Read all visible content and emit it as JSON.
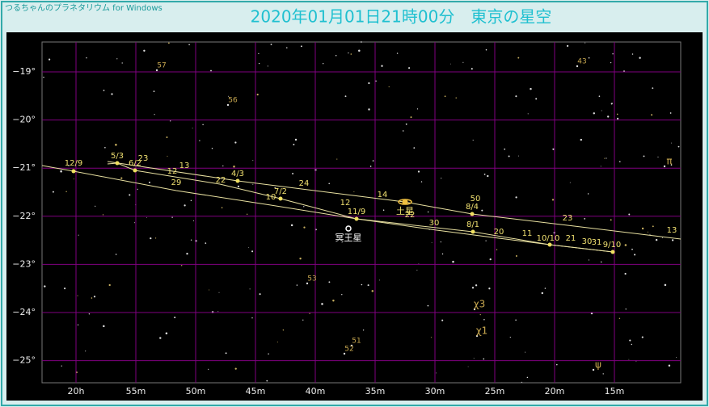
{
  "app_label": "つるちゃんのプラネタリウム for Windows",
  "title": "2020年01月01日21時00分　東京の星空",
  "dec_labels": [
    "−19°",
    "−20°",
    "−21°",
    "−22°",
    "−23°",
    "−24°",
    "−25°"
  ],
  "ra_labels": [
    "20h",
    "55m",
    "50m",
    "45m",
    "40m",
    "35m",
    "30m",
    "25m",
    "20m",
    "15m"
  ],
  "date_labels": [
    "12/9",
    "5/3",
    "6/2",
    "23",
    "12",
    "13",
    "29",
    "22",
    "4/3",
    "10",
    "7/2",
    "24",
    "12",
    "11/9",
    "14",
    "22",
    "30",
    "50",
    "8/4",
    "8/1",
    "20",
    "11",
    "10/10",
    "21",
    "30",
    "31",
    "9/10",
    "23",
    "13"
  ],
  "objects": [
    {
      "label": "土星"
    },
    {
      "label": "冥王星"
    }
  ],
  "star_labels": [
    "57",
    "56",
    "43",
    "53",
    "51",
    "52",
    "χ3",
    "χ1",
    "π",
    "ψ"
  ]
}
